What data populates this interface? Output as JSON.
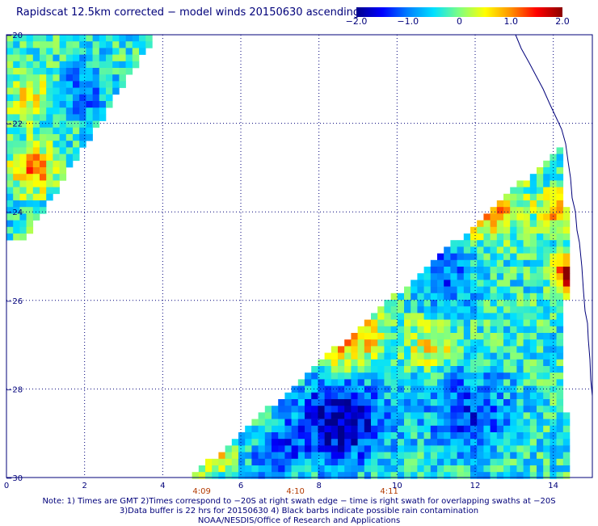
{
  "title": "Rapidscat 12.5km corrected − model winds 20150630 ascending",
  "colorbar": {
    "ticks": [
      "−2.0",
      "−1.0",
      "0",
      "1.0",
      "2.0"
    ],
    "tick_values": [
      -2.0,
      -1.0,
      0,
      1.0,
      2.0
    ],
    "range": [
      -2.0,
      2.0
    ],
    "colors": [
      "#00008c",
      "#0000ff",
      "#0080ff",
      "#00e0ff",
      "#80ff80",
      "#ffff00",
      "#ff9000",
      "#ff0000",
      "#8c0000"
    ]
  },
  "axes": {
    "lon_ticks": [
      "0",
      "2",
      "4",
      "6",
      "8",
      "10",
      "12",
      "14"
    ],
    "lon_values": [
      0,
      2,
      4,
      6,
      8,
      10,
      12,
      14
    ],
    "lon_range": [
      0,
      15
    ],
    "lat_ticks": [
      "−20",
      "−22",
      "−24",
      "−26",
      "−28",
      "−30"
    ],
    "lat_values": [
      -20,
      -22,
      -24,
      -26,
      -28,
      -30
    ],
    "lat_range": [
      -30,
      -20
    ]
  },
  "swath_times": [
    {
      "label": "4:09",
      "lon": 5.0
    },
    {
      "label": "4:10",
      "lon": 7.4
    },
    {
      "label": "4:11",
      "lon": 9.8
    }
  ],
  "notes": [
    "Note: 1) Times are GMT 2)Times correspond to −20S at right swath edge − time is right swath for overlapping swaths at −20S",
    "3)Data buffer is 22 hrs for 20150630 4) Black barbs indicate possible rain contamination",
    "NOAA/NESDIS/Office of Research and Applications"
  ]
}
